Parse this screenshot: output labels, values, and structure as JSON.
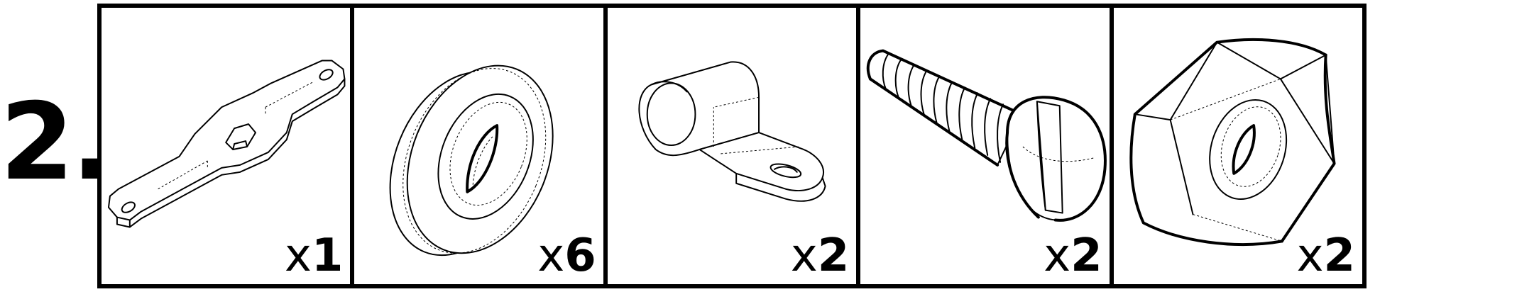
{
  "step": {
    "number": "2."
  },
  "parts": [
    {
      "name": "Wrench",
      "icon": "wrench-icon",
      "qty_prefix": "x",
      "qty_value": "1"
    },
    {
      "name": "Washer",
      "icon": "washer-icon",
      "qty_prefix": "x",
      "qty_value": "6"
    },
    {
      "name": "Cable clip",
      "icon": "cable-clip-icon",
      "qty_prefix": "x",
      "qty_value": "2"
    },
    {
      "name": "Screw",
      "icon": "screw-icon",
      "qty_prefix": "x",
      "qty_value": "2"
    },
    {
      "name": "Hex nut",
      "icon": "hex-nut-icon",
      "qty_prefix": "x",
      "qty_value": "2"
    }
  ]
}
